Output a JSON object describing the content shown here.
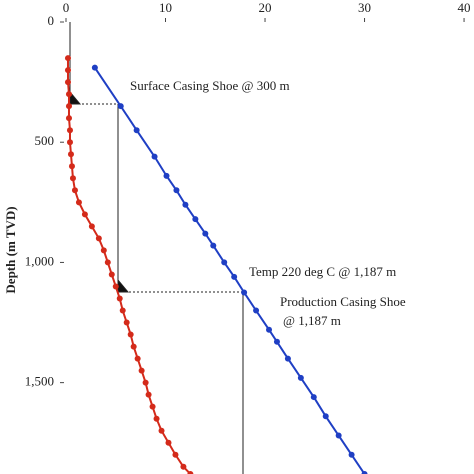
{
  "chart_data": {
    "type": "line",
    "ylabel": "Depth (m TVD)",
    "xlim": [
      0,
      41
    ],
    "ylim": [
      0,
      1880
    ],
    "y_inverted": true,
    "x_axis_position": "top",
    "xticks": [
      0,
      10,
      20,
      30,
      40
    ],
    "yticks": [
      0,
      500,
      {
        "value": 1000,
        "label": "1,000"
      },
      {
        "value": 1500,
        "label": "1,500"
      }
    ],
    "series": [
      {
        "color": "#d42a1a",
        "x": [
          0.2,
          0.2,
          0.2,
          0.3,
          0.3,
          0.3,
          0.4,
          0.4,
          0.5,
          0.6,
          0.7,
          0.9,
          1.3,
          1.9,
          2.6,
          3.3,
          3.8,
          4.2,
          4.6,
          5.0,
          5.4,
          5.7,
          6.1,
          6.5,
          6.8,
          7.2,
          7.6,
          8.0,
          8.3,
          8.7,
          9.1,
          9.6,
          10.3,
          11.0,
          11.8,
          12.5
        ],
        "values": [
          150,
          200,
          250,
          300,
          350,
          400,
          450,
          500,
          550,
          600,
          650,
          700,
          750,
          800,
          850,
          900,
          950,
          1000,
          1050,
          1100,
          1150,
          1200,
          1250,
          1300,
          1350,
          1400,
          1450,
          1500,
          1550,
          1600,
          1650,
          1700,
          1750,
          1800,
          1850,
          1880
        ]
      },
      {
        "color": "#1f3fc4",
        "x": [
          2.9,
          5.5,
          7.1,
          8.9,
          10.1,
          11.1,
          12.0,
          13.0,
          14.0,
          14.8,
          15.9,
          16.9,
          17.9,
          19.1,
          20.4,
          21.2,
          22.3,
          23.6,
          24.9,
          26.1,
          27.4,
          28.7,
          30.0
        ],
        "values": [
          190,
          350,
          450,
          560,
          640,
          700,
          760,
          820,
          880,
          930,
          1000,
          1060,
          1125,
          1200,
          1280,
          1330,
          1400,
          1480,
          1560,
          1640,
          1720,
          1800,
          1880
        ]
      }
    ],
    "annotations": [
      "Surface Casing Shoe @ 300 m",
      "Temp 220 deg C @ 1,187 m",
      "Production Casing Shoe",
      "@ 1,187 m"
    ]
  }
}
